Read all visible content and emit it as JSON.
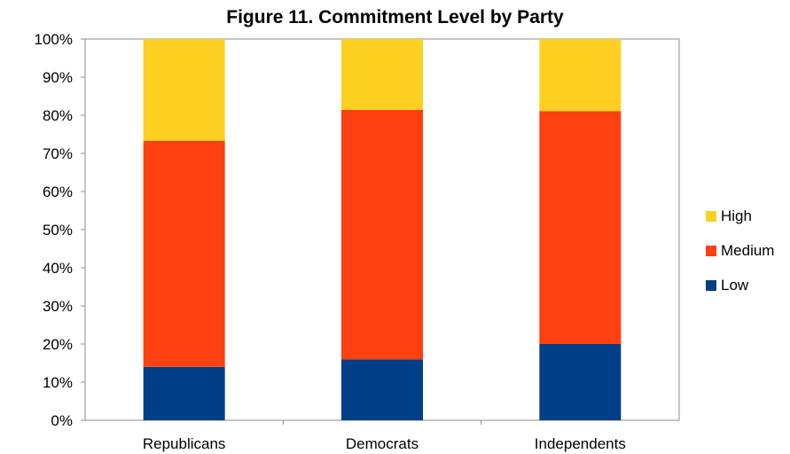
{
  "chart_data": {
    "type": "bar",
    "stacked": true,
    "title": "Figure 11. Commitment Level by Party",
    "xlabel": "",
    "ylabel": "",
    "categories": [
      "Republicans",
      "Democrats",
      "Independents"
    ],
    "series": [
      {
        "name": "Low",
        "color": "#003F87",
        "values": [
          14,
          16,
          20
        ]
      },
      {
        "name": "Medium",
        "color": "#FF4010",
        "values": [
          59.3,
          65.4,
          61.1
        ]
      },
      {
        "name": "High",
        "color": "#FDD021",
        "values": [
          26.7,
          18.6,
          18.9
        ]
      }
    ],
    "yticks": [
      "0%",
      "10%",
      "20%",
      "30%",
      "40%",
      "50%",
      "60%",
      "70%",
      "80%",
      "90%",
      "100%"
    ],
    "ylim": [
      0,
      100
    ],
    "grid": false,
    "legend": "right",
    "legend_order": [
      "High",
      "Medium",
      "Low"
    ]
  }
}
